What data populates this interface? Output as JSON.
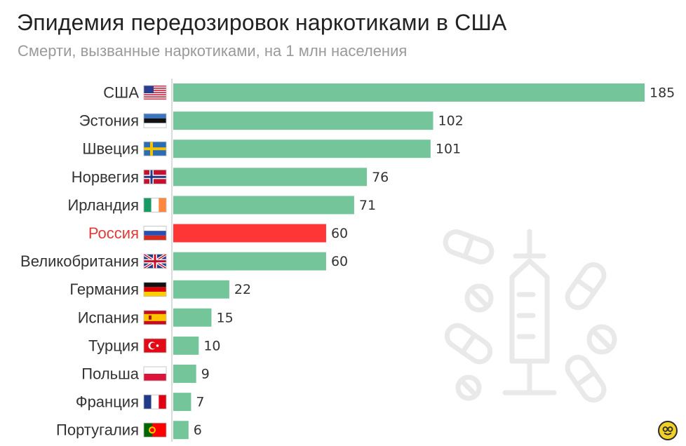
{
  "header": {
    "title": "Эпидемия передозировок наркотиками в США",
    "subtitle": "Смерти, вызванные наркотиками, на 1 млн населения"
  },
  "colors": {
    "bar": "#74c69a",
    "highlight_bar": "#ff3636",
    "highlight_label": "#e03a3a",
    "label": "#333333",
    "value": "#333333",
    "axis": "#cfcfcf",
    "watermark": "#e9e9e9"
  },
  "watermark_icon": "syringe-and-pills-icon",
  "logo_icon": "smiley-logo-icon",
  "chart_data": {
    "type": "bar",
    "orientation": "horizontal",
    "title": "Эпидемия передозировок наркотиками в США",
    "subtitle": "Смерти, вызванные наркотиками, на 1 млн населения",
    "categories": [
      "США",
      "Эстония",
      "Швеция",
      "Норвегия",
      "Ирландия",
      "Россия",
      "Великобритания",
      "Германия",
      "Испания",
      "Турция",
      "Польша",
      "Франция",
      "Португалия"
    ],
    "values": [
      185,
      102,
      101,
      76,
      71,
      60,
      60,
      22,
      15,
      10,
      9,
      7,
      6
    ],
    "flags": [
      "us",
      "ee",
      "se",
      "no",
      "ie",
      "ru",
      "gb",
      "de",
      "es",
      "tr",
      "pl",
      "fr",
      "pt"
    ],
    "highlight": "Россия",
    "xlim": [
      0,
      185
    ],
    "grid": false,
    "legend": "none"
  }
}
